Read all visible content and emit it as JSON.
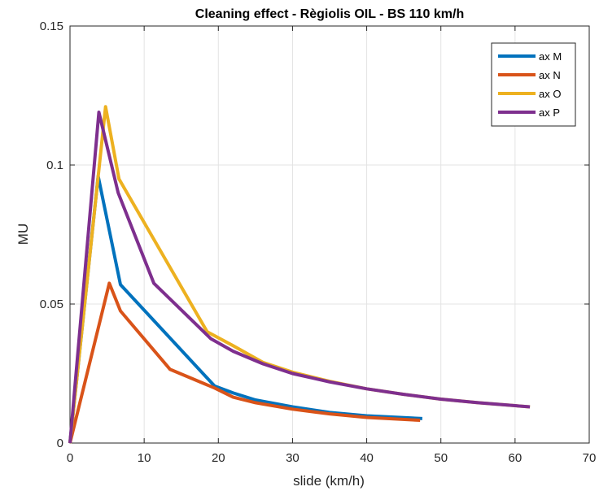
{
  "chart_data": {
    "type": "line",
    "title": "Cleaning effect - Règiolis OIL - BS 110 km/h",
    "xlabel": "slide (km/h)",
    "ylabel": "MU",
    "xlim": [
      0,
      70
    ],
    "ylim": [
      0,
      0.15
    ],
    "xticks": [
      0,
      10,
      20,
      30,
      40,
      50,
      60,
      70
    ],
    "xtick_labels": [
      "0",
      "10",
      "20",
      "30",
      "40",
      "50",
      "60",
      "70"
    ],
    "yticks": [
      0,
      0.05,
      0.1,
      0.15
    ],
    "ytick_labels": [
      "0",
      "0.05",
      "0.1",
      "0.15"
    ],
    "grid": true,
    "legend_position": "top-right",
    "series": [
      {
        "name": "ax M",
        "color": "#0072BD",
        "x": [
          0,
          3.8,
          6.8,
          19.5,
          22,
          25,
          30,
          35,
          40,
          47.5
        ],
        "y": [
          0,
          0.096,
          0.057,
          0.0205,
          0.018,
          0.0155,
          0.013,
          0.011,
          0.0098,
          0.0088
        ]
      },
      {
        "name": "ax N",
        "color": "#D95319",
        "x": [
          0,
          5.3,
          6.8,
          13.5,
          19.5,
          22,
          25,
          30,
          35,
          40,
          47.2
        ],
        "y": [
          0,
          0.0575,
          0.0475,
          0.0265,
          0.0198,
          0.0165,
          0.0145,
          0.0122,
          0.0105,
          0.0092,
          0.0082
        ]
      },
      {
        "name": "ax O",
        "color": "#EDB120",
        "x": [
          0,
          4.8,
          6.6,
          18.5,
          22,
          26,
          30,
          35,
          40,
          45,
          50,
          55,
          62
        ],
        "y": [
          0,
          0.121,
          0.095,
          0.04,
          0.035,
          0.029,
          0.0255,
          0.0222,
          0.0195,
          0.0175,
          0.0158,
          0.0145,
          0.013
        ]
      },
      {
        "name": "ax P",
        "color": "#7E2F8E",
        "x": [
          0,
          3.9,
          6.5,
          11.3,
          19,
          22,
          26,
          30,
          35,
          40,
          45,
          50,
          55,
          62
        ],
        "y": [
          0,
          0.119,
          0.09,
          0.0575,
          0.0375,
          0.033,
          0.0285,
          0.025,
          0.022,
          0.0195,
          0.0175,
          0.0158,
          0.0145,
          0.013
        ]
      }
    ]
  }
}
